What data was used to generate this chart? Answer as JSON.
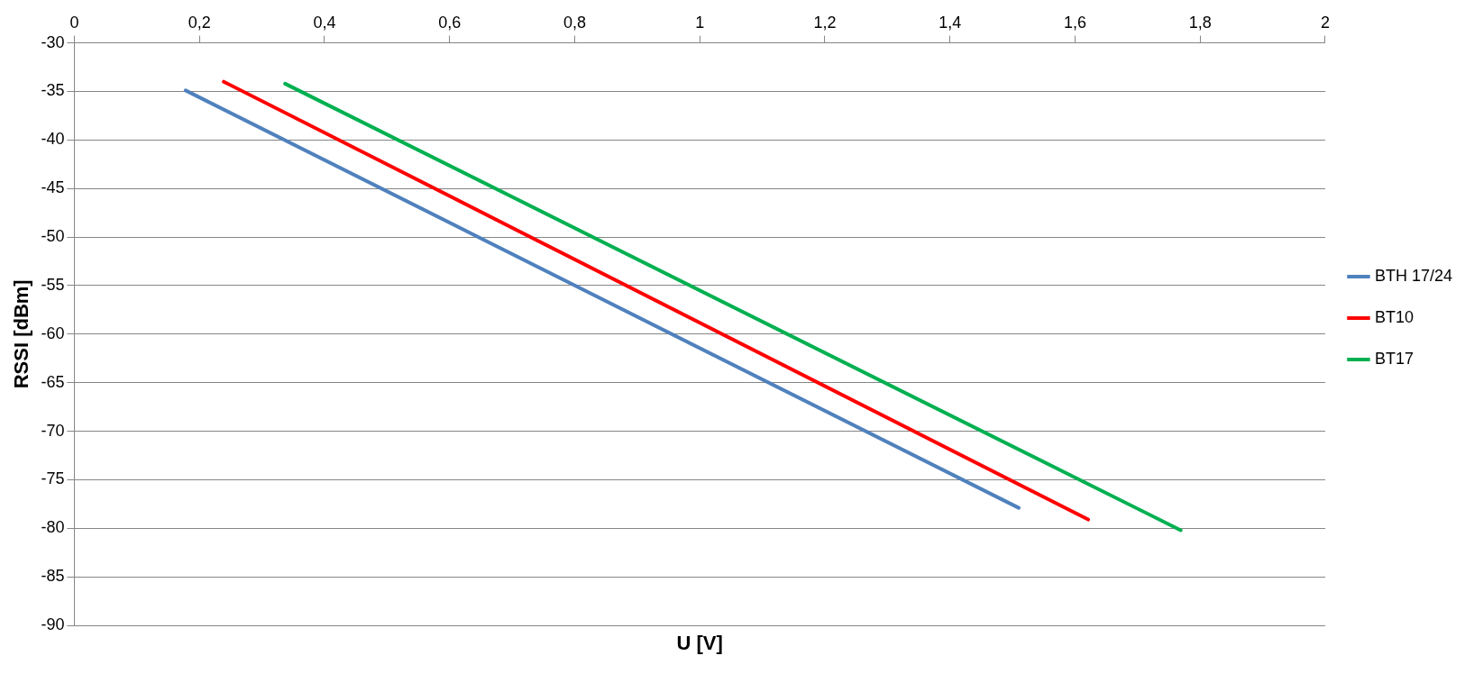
{
  "chart_data": {
    "type": "line",
    "xlabel": "U [V]",
    "ylabel": "RSSI [dBm]",
    "series": [
      {
        "name": "BTH 17/24",
        "color": "#4f81bd",
        "x": [
          0.178,
          1.51
        ],
        "values": [
          -34.9,
          -77.9
        ]
      },
      {
        "name": "BT10",
        "color": "#ff0000",
        "x": [
          0.239,
          1.621
        ],
        "values": [
          -34.0,
          -79.1
        ]
      },
      {
        "name": "BT17",
        "color": "#00b050",
        "x": [
          0.337,
          1.769
        ],
        "values": [
          -34.2,
          -80.2
        ]
      }
    ],
    "xlim": [
      0,
      2
    ],
    "xticks": [
      0,
      {
        "value": 0.2,
        "label": "0,2"
      },
      {
        "value": 0.4,
        "label": "0,4"
      },
      {
        "value": 0.6,
        "label": "0,6"
      },
      {
        "value": 0.8,
        "label": "0,8"
      },
      1,
      {
        "value": 1.2,
        "label": "1,2"
      },
      {
        "value": 1.4,
        "label": "1,4"
      },
      {
        "value": 1.6,
        "label": "1,6"
      },
      {
        "value": 1.8,
        "label": "1,8"
      },
      2
    ],
    "ylim": [
      -90,
      -30
    ],
    "yticks": [
      -90,
      -85,
      -80,
      -75,
      -70,
      -65,
      -60,
      -55,
      -50,
      -45,
      -40,
      -35,
      -30
    ],
    "grid": "y",
    "legend": "right",
    "marker": "none",
    "line_style": "solid"
  }
}
